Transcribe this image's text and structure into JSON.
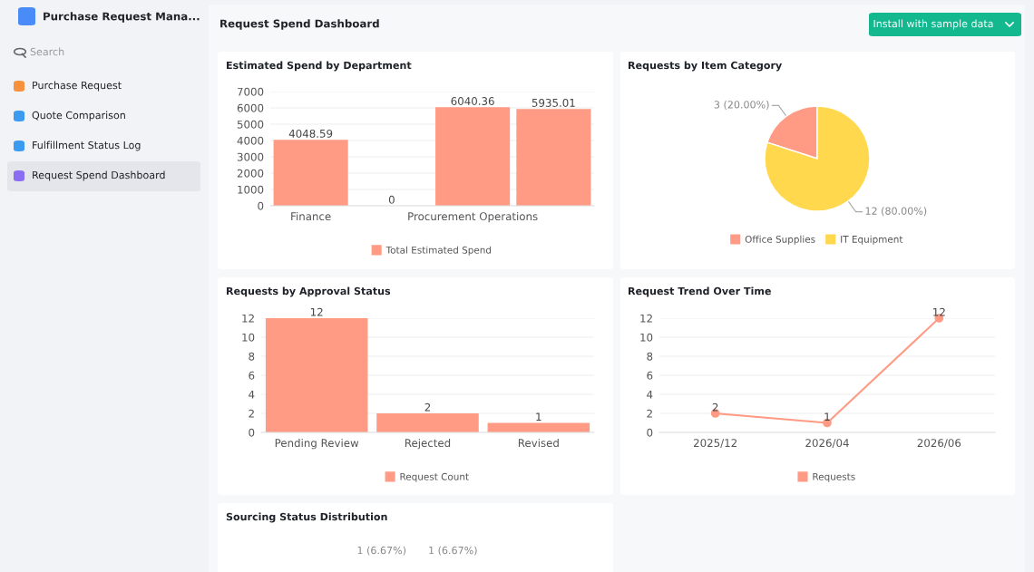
{
  "chart_data": [
    {
      "type": "other",
      "title": "Request Spend Dashboard",
      "annotations": [
        "Purchase Request Mana...",
        "Search",
        "Purchase Request",
        "Quote Comparison",
        "Fulfillment Status Log",
        "Request Spend Dashboard",
        "Install with sample data"
      ]
    },
    {
      "type": "bar",
      "title": "Estimated Spend by Department",
      "categories": [
        "Finance",
        null,
        "Procurement Operations",
        null
      ],
      "series": [
        {
          "name": "Total Estimated Spend",
          "color": "#ff9b85",
          "values": [
            4048.59,
            0,
            6040.36,
            5935.01
          ]
        }
      ],
      "ylim": [
        0,
        7000
      ],
      "yticks": [
        0,
        1000,
        2000,
        3000,
        4000,
        5000,
        6000,
        7000
      ],
      "grid": "y",
      "data_labels": true,
      "legend": "bottom"
    },
    {
      "type": "pie",
      "title": "Requests by Item Category",
      "categories": [
        "Office Supplies",
        "IT Equipment"
      ],
      "values": [
        3,
        12
      ],
      "value_labels": [
        "3 (20.00%)",
        "12 (80.00%)"
      ],
      "colors": [
        "#ff9b85",
        "#ffd84d"
      ],
      "legend": "bottom"
    },
    {
      "type": "bar",
      "title": "Requests by Approval Status",
      "categories": [
        "Pending Review",
        "Rejected",
        "Revised"
      ],
      "series": [
        {
          "name": "Request Count",
          "color": "#ff9b85",
          "values": [
            12,
            2,
            1
          ]
        }
      ],
      "ylim": [
        0,
        12
      ],
      "yticks": [
        0,
        2,
        4,
        6,
        8,
        10,
        12
      ],
      "grid": "y",
      "data_labels": true,
      "legend": "bottom"
    },
    {
      "type": "line",
      "title": "Request Trend Over Time",
      "categories": [
        "2025/12",
        "2026/04",
        "2026/06"
      ],
      "series": [
        {
          "name": "Requests",
          "color": "#ff9b85",
          "values": [
            2,
            1,
            12
          ]
        }
      ],
      "ylim": [
        0,
        12
      ],
      "yticks": [
        0,
        2,
        4,
        6,
        8,
        10,
        12
      ],
      "grid": "y",
      "data_labels": true,
      "legend": "bottom",
      "marker": "circle",
      "line_style": "solid"
    },
    {
      "type": "other",
      "title": "Sourcing Status Distribution",
      "annotations": [
        "1 (6.67%)",
        "1 (6.67%)"
      ]
    }
  ]
}
